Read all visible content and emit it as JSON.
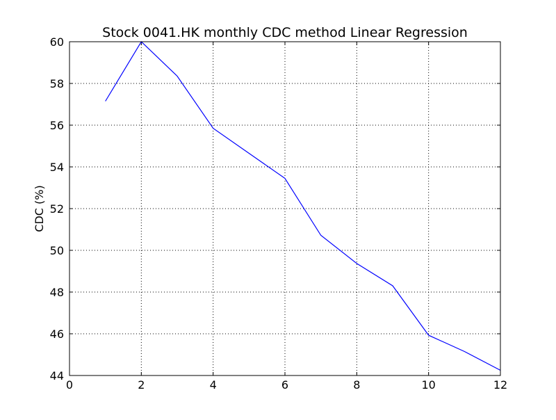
{
  "chart_data": {
    "type": "line",
    "title": "Stock 0041.HK monthly CDC method Linear Regression",
    "xlabel": "",
    "ylabel": "CDC (%)",
    "xlim": [
      0,
      12
    ],
    "ylim": [
      44,
      60
    ],
    "xticks": [
      0,
      2,
      4,
      6,
      8,
      10,
      12
    ],
    "yticks": [
      44,
      46,
      48,
      50,
      52,
      54,
      56,
      58,
      60
    ],
    "grid": true,
    "series": [
      {
        "color": "#0000ff",
        "x": [
          1,
          2,
          3,
          4,
          5,
          6,
          7,
          8,
          9,
          10,
          11,
          12
        ],
        "y": [
          57.15,
          60.0,
          58.35,
          55.85,
          54.65,
          53.45,
          50.72,
          49.37,
          48.3,
          45.93,
          45.15,
          44.25
        ]
      }
    ]
  }
}
